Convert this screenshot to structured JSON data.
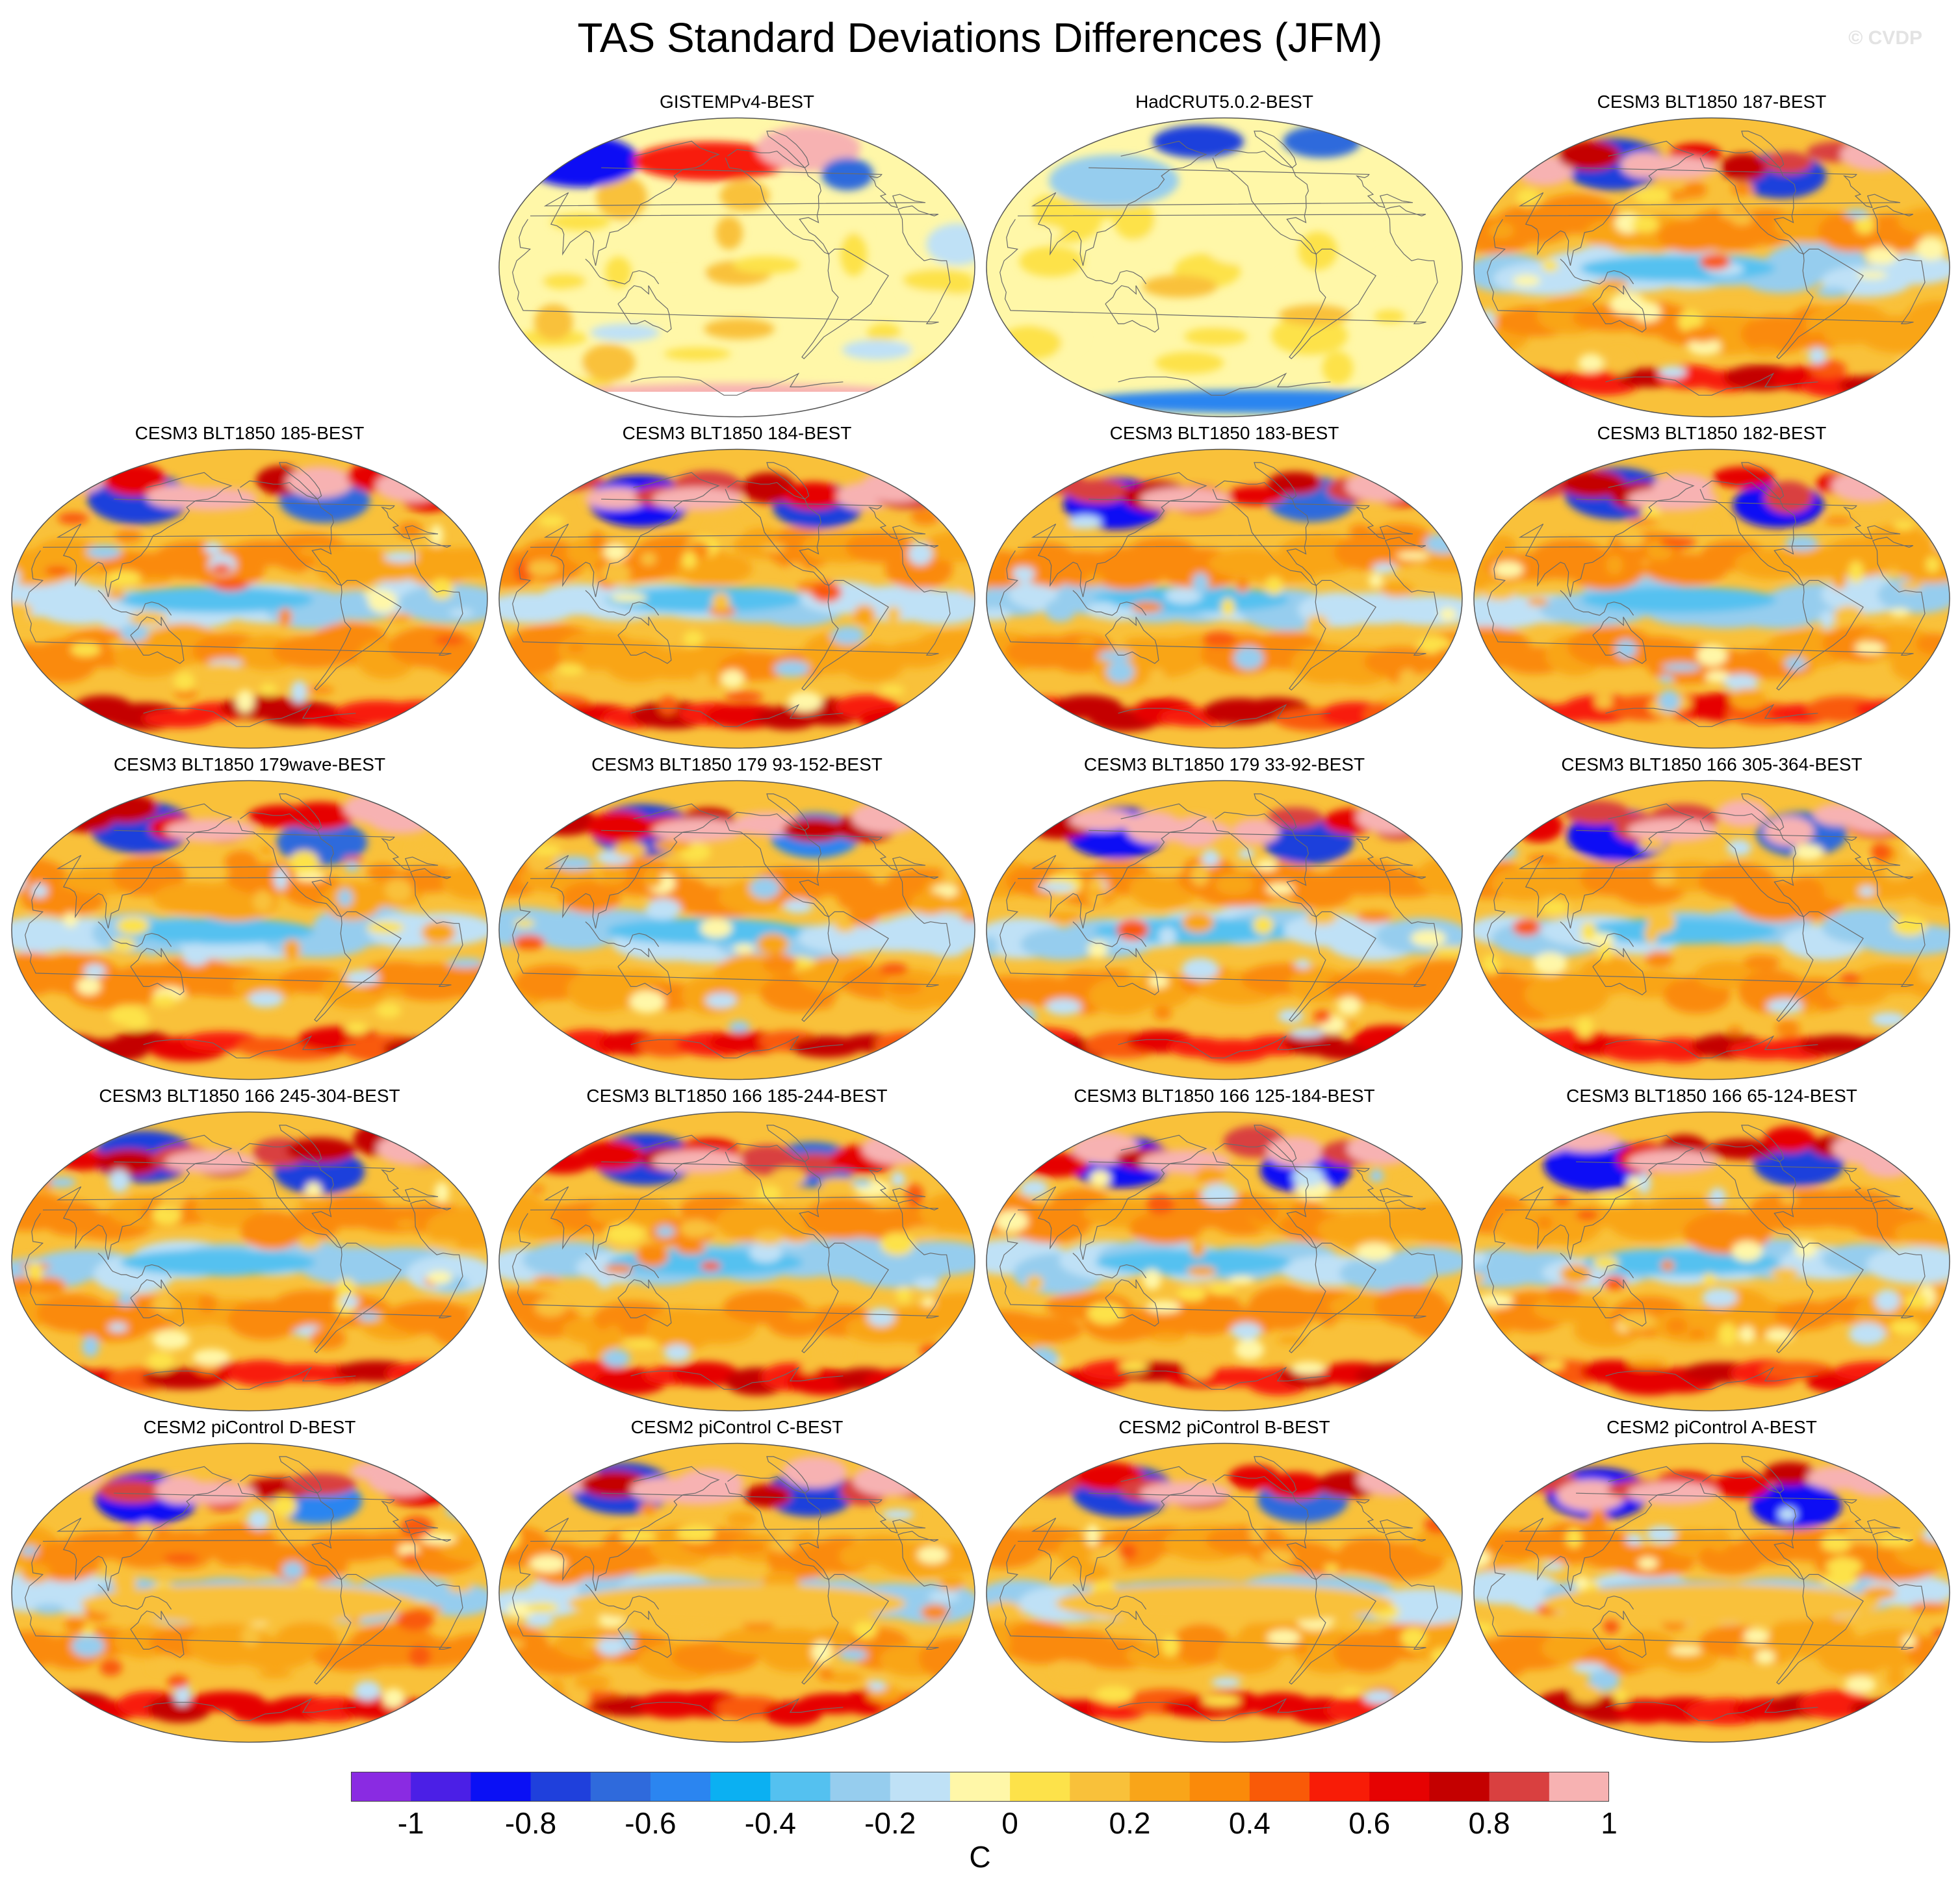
{
  "title": "TAS Standard Deviations Differences (JFM)",
  "credit": "© CVDP",
  "panels": [
    {
      "label": "GISTEMPv4-BEST",
      "variant": 1,
      "style": "obs-gistemp"
    },
    {
      "label": "HadCRUT5.0.2-BEST",
      "variant": 2,
      "style": "obs-hadcrut"
    },
    {
      "label": "CESM3 BLT1850 187-BEST",
      "variant": 3,
      "style": "model"
    },
    {
      "label": "CESM3 BLT1850 185-BEST",
      "variant": 4,
      "style": "model"
    },
    {
      "label": "CESM3 BLT1850 184-BEST",
      "variant": 5,
      "style": "model"
    },
    {
      "label": "CESM3 BLT1850 183-BEST",
      "variant": 6,
      "style": "model"
    },
    {
      "label": "CESM3 BLT1850 182-BEST",
      "variant": 7,
      "style": "model"
    },
    {
      "label": "CESM3 BLT1850 179wave-BEST",
      "variant": 8,
      "style": "model"
    },
    {
      "label": "CESM3 BLT1850 179 93-152-BEST",
      "variant": 9,
      "style": "model"
    },
    {
      "label": "CESM3 BLT1850 179 33-92-BEST",
      "variant": 10,
      "style": "model"
    },
    {
      "label": "CESM3 BLT1850 166 305-364-BEST",
      "variant": 11,
      "style": "model"
    },
    {
      "label": "CESM3 BLT1850 166 245-304-BEST",
      "variant": 12,
      "style": "model"
    },
    {
      "label": "CESM3 BLT1850 166 185-244-BEST",
      "variant": 13,
      "style": "model"
    },
    {
      "label": "CESM3 BLT1850 166 125-184-BEST",
      "variant": 14,
      "style": "model"
    },
    {
      "label": "CESM3 BLT1850 166 65-124-BEST",
      "variant": 15,
      "style": "model"
    },
    {
      "label": "CESM2 piControl D-BEST",
      "variant": 16,
      "style": "pi"
    },
    {
      "label": "CESM2 piControl C-BEST",
      "variant": 17,
      "style": "pi"
    },
    {
      "label": "CESM2 piControl B-BEST",
      "variant": 18,
      "style": "pi"
    },
    {
      "label": "CESM2 piControl A-BEST",
      "variant": 19,
      "style": "pi"
    }
  ],
  "colorbar": {
    "colors": [
      "#8a2be2",
      "#4b1fe6",
      "#0a10f5",
      "#1f40dc",
      "#2f6adc",
      "#2b85f0",
      "#0bb0f2",
      "#54c1f0",
      "#96cdee",
      "#bfe1f6",
      "#fff7a8",
      "#fde24a",
      "#f9c13a",
      "#f9a519",
      "#fa8a0a",
      "#f95a08",
      "#f81c07",
      "#e60202",
      "#c40000",
      "#d94040",
      "#f7b2b2"
    ],
    "tick_labels": [
      "-1",
      "-0.8",
      "-0.6",
      "-0.4",
      "-0.2",
      "0",
      "0.2",
      "0.4",
      "0.6",
      "0.8",
      "1"
    ],
    "units": "C"
  }
}
